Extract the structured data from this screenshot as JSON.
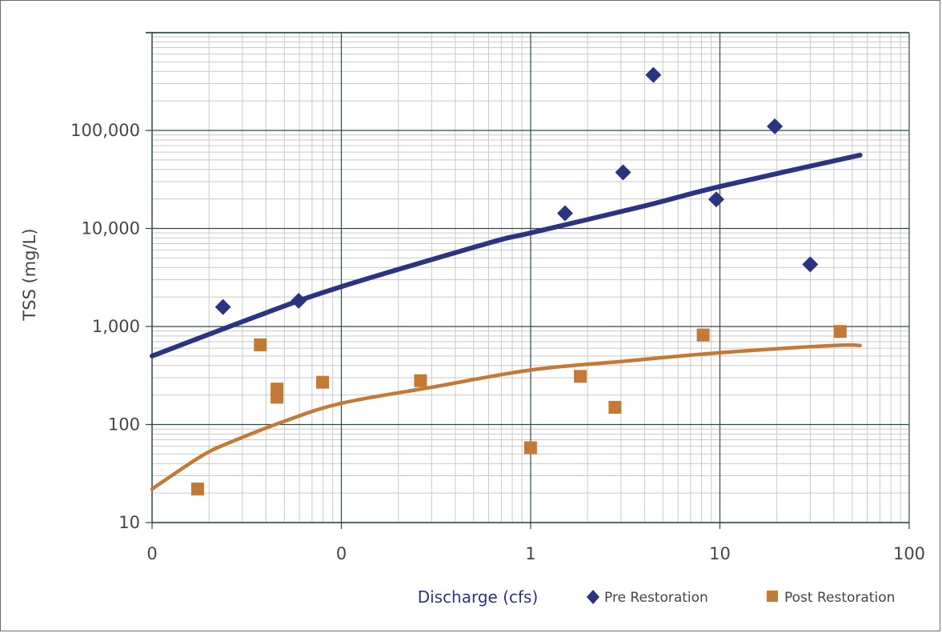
{
  "chart_data": {
    "type": "scatter",
    "title": "",
    "xlabel": "Discharge (cfs)",
    "ylabel": "TSS (mg/L)",
    "x_scale": "log",
    "y_scale": "log",
    "xlim": [
      0.01,
      100
    ],
    "ylim": [
      10,
      1000000
    ],
    "x_tick_labels": [
      "0",
      "0",
      "1",
      "10",
      "100"
    ],
    "y_tick_labels": [
      "10",
      "100",
      "1,000",
      "10,000",
      "100,000"
    ],
    "grid": true,
    "legend_position": "bottom",
    "series": [
      {
        "name": "Pre Restoration",
        "marker": "diamond",
        "color": "#2b3480",
        "points": [
          {
            "x": 0.0237,
            "y": 1580
          },
          {
            "x": 0.0595,
            "y": 1830
          },
          {
            "x": 1.52,
            "y": 14300
          },
          {
            "x": 3.08,
            "y": 37400
          },
          {
            "x": 4.45,
            "y": 368000
          },
          {
            "x": 9.57,
            "y": 19800
          },
          {
            "x": 19.5,
            "y": 110000
          },
          {
            "x": 30.0,
            "y": 4300
          }
        ],
        "fit_line": [
          {
            "x": 0.01,
            "y": 500
          },
          {
            "x": 0.04,
            "y": 1380
          },
          {
            "x": 0.1,
            "y": 2550
          },
          {
            "x": 0.6,
            "y": 7100
          },
          {
            "x": 1.0,
            "y": 9000
          },
          {
            "x": 4.0,
            "y": 17000
          },
          {
            "x": 10.0,
            "y": 26800
          },
          {
            "x": 55.0,
            "y": 56000
          }
        ]
      },
      {
        "name": "Post Restoration",
        "marker": "square",
        "color": "#c47a36",
        "points": [
          {
            "x": 0.0174,
            "y": 22
          },
          {
            "x": 0.0373,
            "y": 650
          },
          {
            "x": 0.0457,
            "y": 190
          },
          {
            "x": 0.0457,
            "y": 230
          },
          {
            "x": 0.0796,
            "y": 270
          },
          {
            "x": 0.262,
            "y": 280
          },
          {
            "x": 0.999,
            "y": 58
          },
          {
            "x": 1.83,
            "y": 310
          },
          {
            "x": 2.79,
            "y": 150
          },
          {
            "x": 8.16,
            "y": 820
          },
          {
            "x": 43.2,
            "y": 890
          }
        ],
        "fit_line": [
          {
            "x": 0.01,
            "y": 22
          },
          {
            "x": 0.018,
            "y": 47
          },
          {
            "x": 0.025,
            "y": 64
          },
          {
            "x": 0.05,
            "y": 108
          },
          {
            "x": 0.1,
            "y": 165
          },
          {
            "x": 0.3,
            "y": 240
          },
          {
            "x": 1.0,
            "y": 360
          },
          {
            "x": 3.0,
            "y": 440
          },
          {
            "x": 10.0,
            "y": 540
          },
          {
            "x": 40.0,
            "y": 640
          },
          {
            "x": 55.0,
            "y": 640
          }
        ]
      }
    ]
  }
}
